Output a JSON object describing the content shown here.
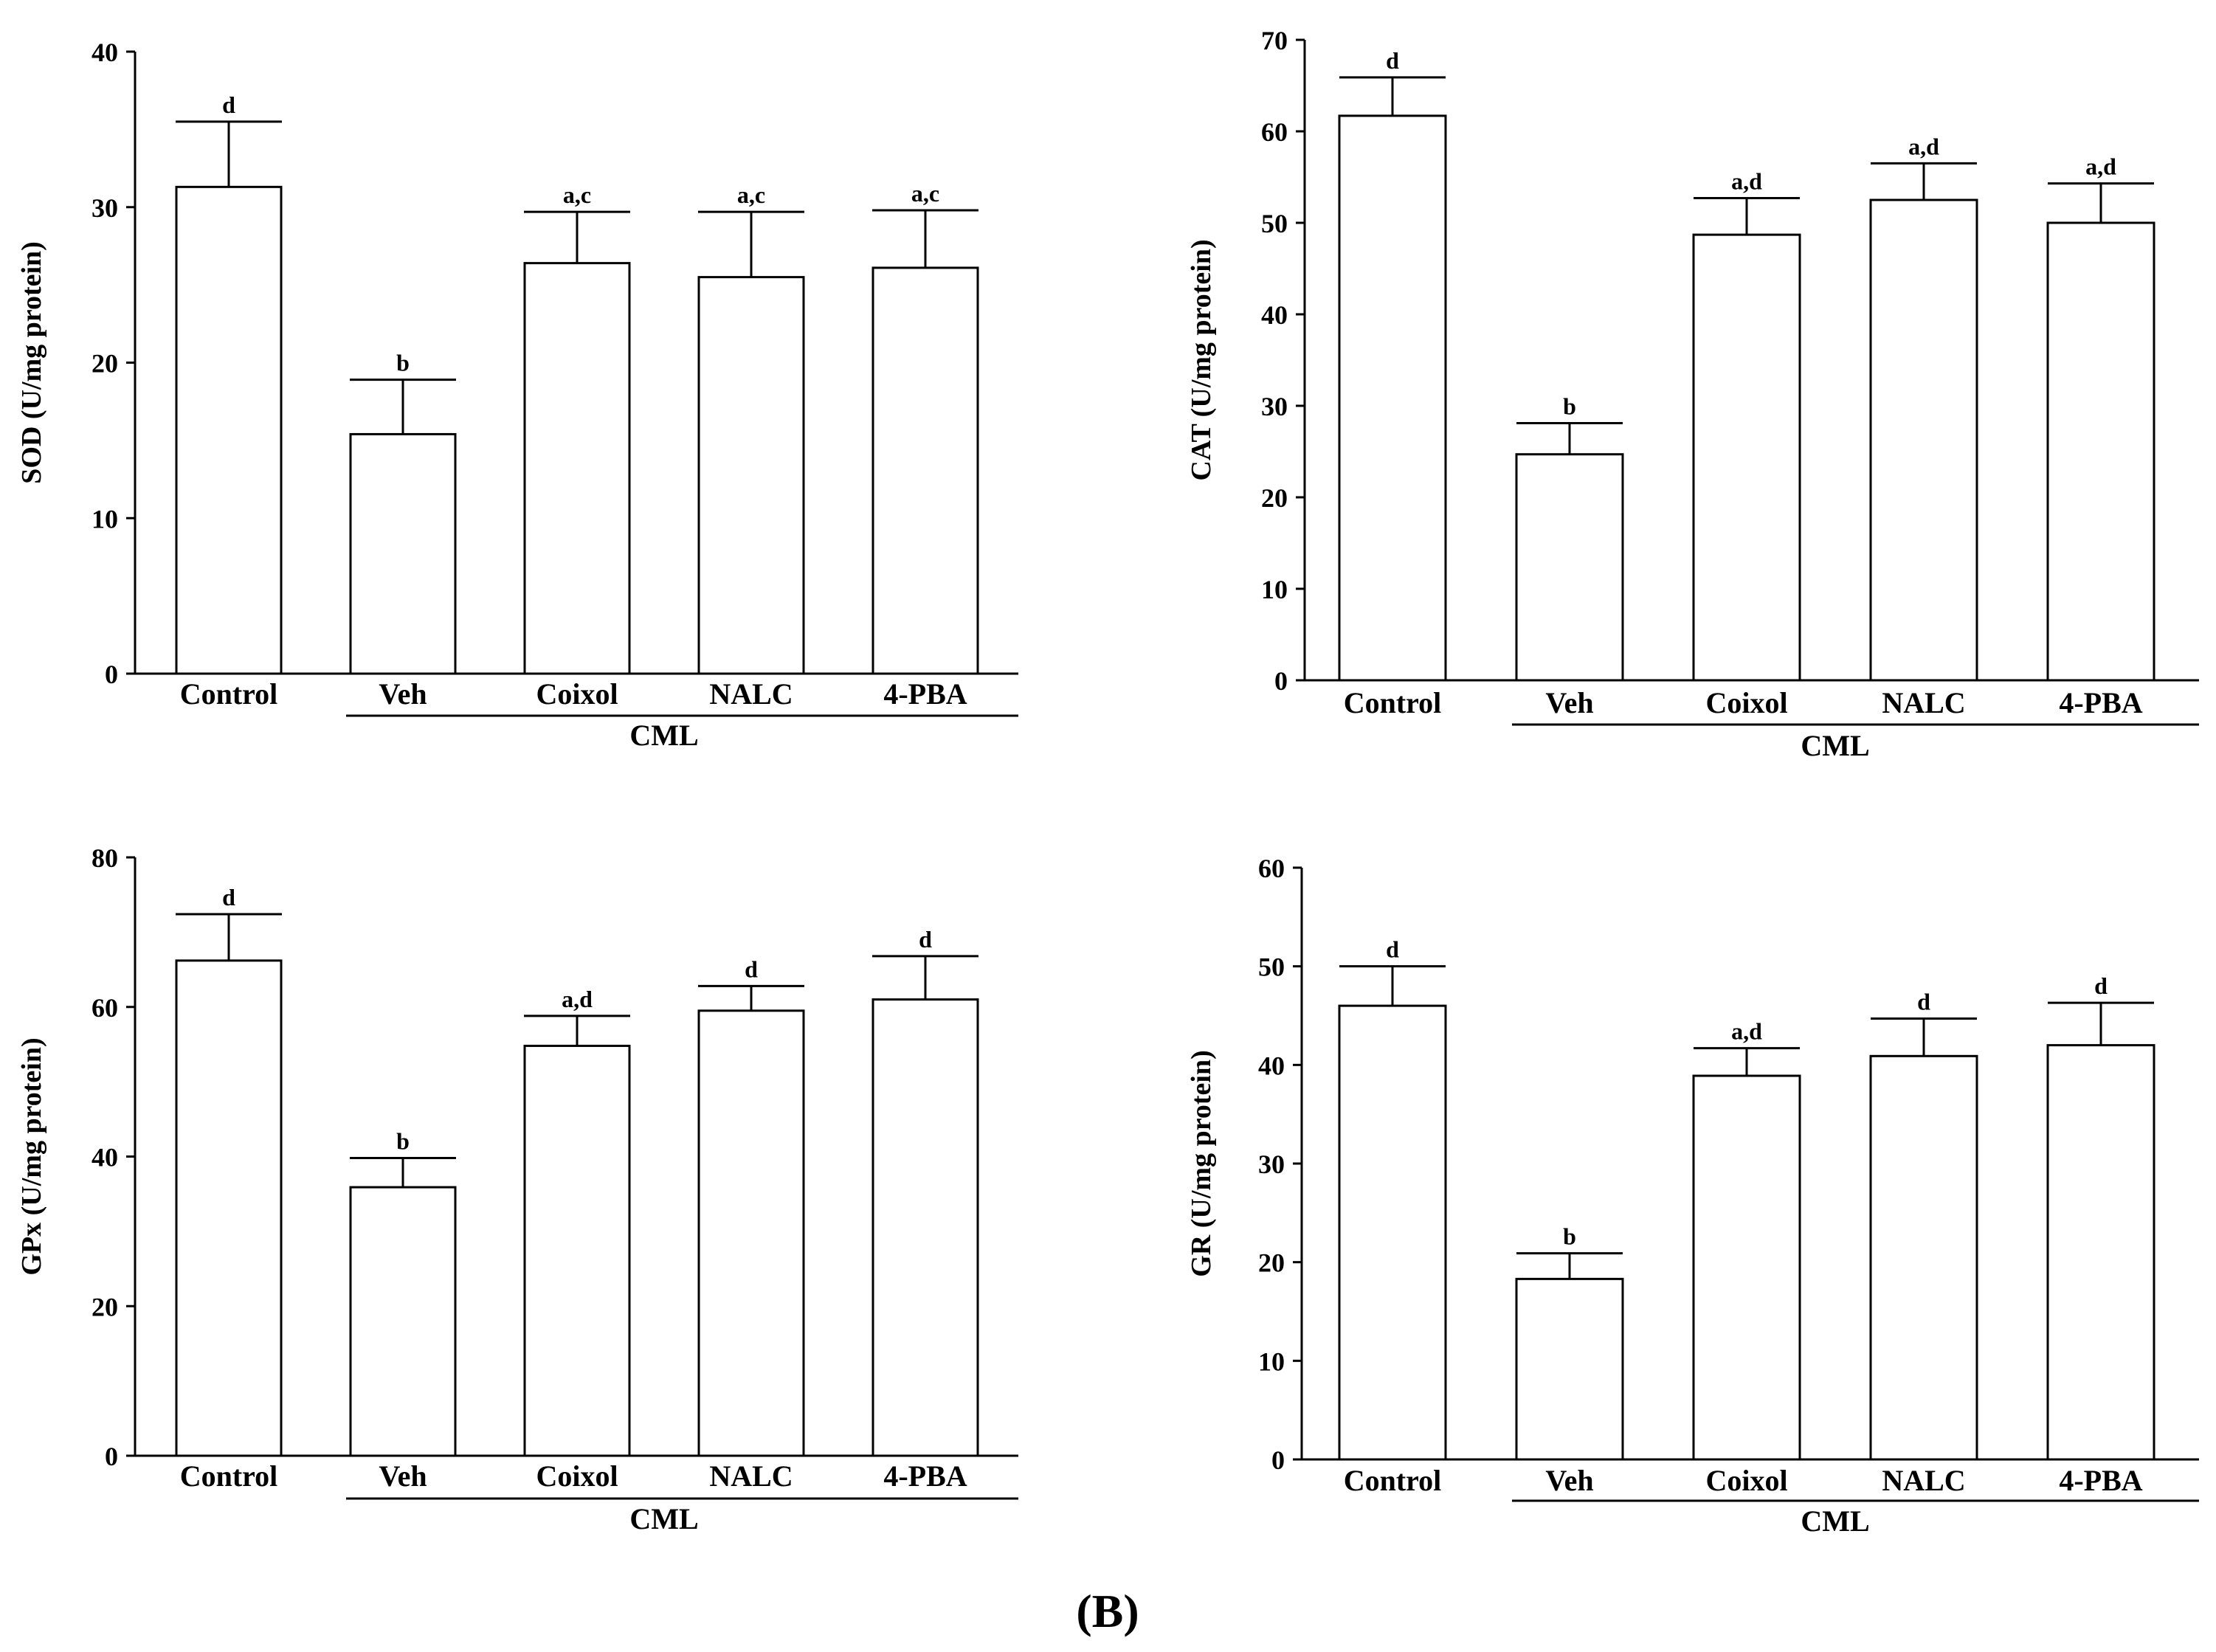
{
  "figure": {
    "panel_label": "(B)"
  },
  "chart_data": [
    {
      "type": "bar",
      "title": "",
      "ylabel": "SOD (U/mg protein)",
      "xlabel": "",
      "ylim": [
        0,
        40
      ],
      "yticks": [
        0,
        10,
        20,
        30,
        40
      ],
      "categories": [
        "Control",
        "Veh",
        "Coixol",
        "NALC",
        "4-PBA"
      ],
      "values": [
        31.3,
        15.4,
        26.4,
        25.5,
        26.1
      ],
      "errors": [
        4.2,
        3.5,
        3.3,
        4.2,
        3.7
      ],
      "significance": [
        "d",
        "b",
        "a,c",
        "a,c",
        "a,c"
      ],
      "group": {
        "label": "CML",
        "from": 1,
        "to": 4
      }
    },
    {
      "type": "bar",
      "title": "",
      "ylabel": "CAT (U/mg protein)",
      "xlabel": "",
      "ylim": [
        0,
        70
      ],
      "yticks": [
        0,
        10,
        20,
        30,
        40,
        50,
        60,
        70
      ],
      "categories": [
        "Control",
        "Veh",
        "Coixol",
        "NALC",
        "4-PBA"
      ],
      "values": [
        61.7,
        24.7,
        48.7,
        52.5,
        50.0
      ],
      "errors": [
        4.2,
        3.4,
        4.0,
        4.0,
        4.3
      ],
      "significance": [
        "d",
        "b",
        "a,d",
        "a,d",
        "a,d"
      ],
      "group": {
        "label": "CML",
        "from": 1,
        "to": 4
      }
    },
    {
      "type": "bar",
      "title": "",
      "ylabel": "GPx (U/mg protein)",
      "xlabel": "",
      "ylim": [
        0,
        80
      ],
      "yticks": [
        0,
        20,
        40,
        60,
        80
      ],
      "categories": [
        "Control",
        "Veh",
        "Coixol",
        "NALC",
        "4-PBA"
      ],
      "values": [
        66.2,
        35.9,
        54.8,
        59.5,
        61.0
      ],
      "errors": [
        6.2,
        3.9,
        4.0,
        3.3,
        5.8
      ],
      "significance": [
        "d",
        "b",
        "a,d",
        "d",
        "d"
      ],
      "group": {
        "label": "CML",
        "from": 1,
        "to": 4
      }
    },
    {
      "type": "bar",
      "title": "",
      "ylabel": "GR (U/mg protein)",
      "xlabel": "",
      "ylim": [
        0,
        60
      ],
      "yticks": [
        0,
        10,
        20,
        30,
        40,
        50,
        60
      ],
      "categories": [
        "Control",
        "Veh",
        "Coixol",
        "NALC",
        "4-PBA"
      ],
      "values": [
        46.0,
        18.3,
        38.9,
        40.9,
        42.0
      ],
      "errors": [
        4.0,
        2.6,
        2.8,
        3.8,
        4.3
      ],
      "significance": [
        "d",
        "b",
        "a,d",
        "d",
        "d"
      ],
      "group": {
        "label": "CML",
        "from": 1,
        "to": 4
      }
    }
  ]
}
